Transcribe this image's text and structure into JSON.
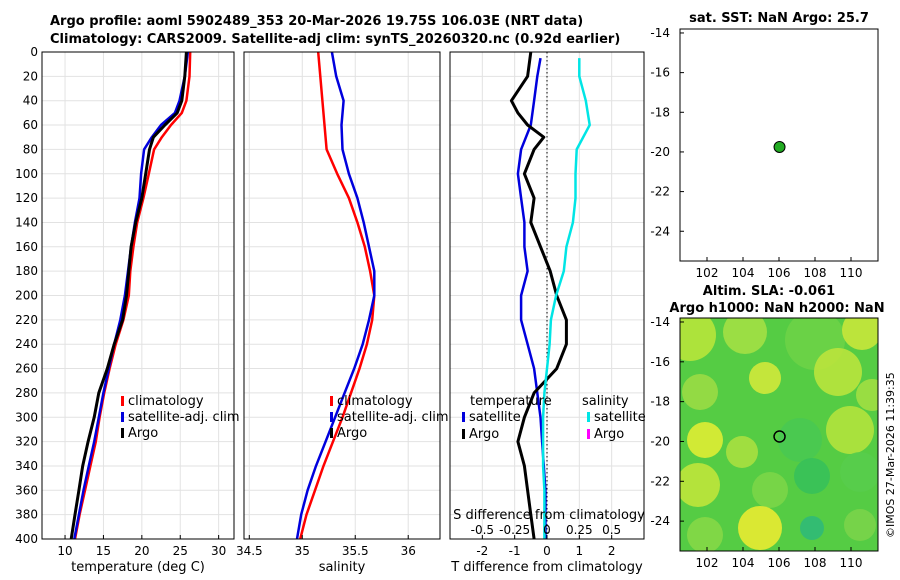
{
  "header": {
    "line1": "Argo profile: aoml 5902489_353 20-Mar-2026 19.75S 106.03E (NRT data)",
    "line2": "Climatology: CARS2009. Satellite-adj clim: synTS_20260320.nc (0.92d earlier)"
  },
  "colors": {
    "climatology": "#ff0000",
    "satellite_adj_clim": "#0000dd",
    "argo": "#000000",
    "salinity_satellite": "#00e5e5",
    "salinity_argo": "#ff00ff",
    "argo_point": "#22aa22"
  },
  "depth_ticks": [
    0,
    20,
    40,
    60,
    80,
    100,
    120,
    140,
    160,
    180,
    200,
    220,
    240,
    260,
    280,
    300,
    320,
    340,
    360,
    380,
    400
  ],
  "chart_data": [
    {
      "type": "line",
      "name": "temperature-profile",
      "xlabel": "temperature (deg C)",
      "ylabel": "depth",
      "xlim": [
        7,
        32
      ],
      "ylim": [
        0,
        400
      ],
      "x_ticks": [
        10,
        15,
        20,
        25,
        30
      ],
      "legend": [
        "climatology",
        "satellite-adj. clim",
        "Argo"
      ],
      "series": [
        {
          "name": "climatology",
          "depth": [
            0,
            20,
            40,
            50,
            60,
            70,
            80,
            100,
            120,
            140,
            160,
            180,
            200,
            220,
            240,
            260,
            280,
            300,
            320,
            340,
            360,
            380,
            400
          ],
          "values": [
            26.3,
            26.2,
            25.8,
            25.2,
            23.8,
            22.6,
            21.6,
            20.9,
            20.2,
            19.4,
            18.9,
            18.5,
            18.3,
            17.6,
            16.6,
            15.8,
            15.1,
            14.5,
            14.0,
            13.3,
            12.6,
            11.9,
            11.3
          ]
        },
        {
          "name": "satellite-adj. clim",
          "depth": [
            0,
            20,
            40,
            50,
            60,
            70,
            80,
            100,
            120,
            140,
            160,
            180,
            200,
            220,
            240,
            260,
            280,
            300,
            320,
            340,
            360,
            380,
            400
          ],
          "values": [
            26.0,
            25.6,
            24.9,
            24.3,
            22.5,
            21.3,
            20.3,
            19.9,
            19.7,
            19.1,
            18.6,
            18.2,
            17.8,
            17.2,
            16.4,
            15.7,
            15.0,
            14.4,
            13.8,
            13.1,
            12.4,
            11.8,
            11.2
          ]
        },
        {
          "name": "Argo",
          "depth": [
            0,
            20,
            40,
            50,
            60,
            70,
            80,
            100,
            120,
            140,
            160,
            180,
            200,
            220,
            240,
            260,
            280,
            300,
            320,
            340,
            360,
            380,
            400
          ],
          "values": [
            25.8,
            25.6,
            25.2,
            24.6,
            23.0,
            21.5,
            21.0,
            20.5,
            20.0,
            19.2,
            18.6,
            18.3,
            18.0,
            17.5,
            16.4,
            15.5,
            14.4,
            13.8,
            13.0,
            12.3,
            11.8,
            11.3,
            10.8
          ]
        }
      ]
    },
    {
      "type": "line",
      "name": "salinity-profile",
      "xlabel": "salinity",
      "ylabel": "depth",
      "xlim": [
        34.45,
        36.3
      ],
      "ylim": [
        0,
        400
      ],
      "x_ticks": [
        34.5,
        35,
        35.5,
        36
      ],
      "legend": [
        "climatology",
        "satellite-adj. clim",
        "Argo"
      ],
      "series": [
        {
          "name": "climatology",
          "depth": [
            0,
            20,
            40,
            60,
            80,
            100,
            120,
            140,
            160,
            180,
            200,
            220,
            240,
            260,
            280,
            300,
            320,
            340,
            360,
            380,
            400
          ],
          "values": [
            35.15,
            35.17,
            35.19,
            35.21,
            35.23,
            35.33,
            35.44,
            35.52,
            35.59,
            35.64,
            35.68,
            35.66,
            35.61,
            35.54,
            35.46,
            35.38,
            35.29,
            35.2,
            35.12,
            35.04,
            34.98
          ]
        },
        {
          "name": "satellite-adj. clim",
          "depth": [
            0,
            20,
            40,
            60,
            80,
            100,
            120,
            140,
            160,
            180,
            200,
            220,
            240,
            260,
            280,
            300,
            320,
            340,
            360,
            380,
            400
          ],
          "values": [
            35.28,
            35.32,
            35.39,
            35.37,
            35.38,
            35.44,
            35.52,
            35.58,
            35.63,
            35.68,
            35.68,
            35.63,
            35.57,
            35.49,
            35.4,
            35.31,
            35.22,
            35.13,
            35.05,
            34.99,
            34.95
          ]
        }
      ]
    },
    {
      "type": "line",
      "name": "difference-profile",
      "xlabel": "T difference from climatology",
      "top_xlabel": "S difference from climatology",
      "ylabel": "depth",
      "xlim": [
        -3,
        3
      ],
      "ylim": [
        0,
        400
      ],
      "x_ticks": [
        -2,
        -1,
        0,
        1,
        2
      ],
      "s_ticks": [
        -0.5,
        -0.25,
        0,
        0.25,
        0.5
      ],
      "s_tick_labels": [
        "-0.5",
        "-0.25",
        "0",
        "0.25",
        "0.5"
      ],
      "legend_left_title": "temperature",
      "legend_right_title": "salinity",
      "legend_left": [
        "satellite",
        "Argo"
      ],
      "legend_right": [
        "satellite",
        "Argo"
      ],
      "series": [
        {
          "name": "temperature satellite",
          "depth": [
            5,
            20,
            40,
            60,
            80,
            100,
            120,
            140,
            160,
            180,
            200,
            220,
            240,
            260,
            280,
            300,
            320,
            340,
            360,
            380,
            400
          ],
          "values": [
            -0.2,
            -0.3,
            -0.4,
            -0.5,
            -0.8,
            -0.9,
            -0.8,
            -0.7,
            -0.7,
            -0.6,
            -0.8,
            -0.8,
            -0.6,
            -0.4,
            -0.3,
            -0.2,
            -0.15,
            -0.1,
            -0.05,
            -0.05,
            -0.05
          ]
        },
        {
          "name": "temperature Argo",
          "depth": [
            0,
            20,
            40,
            50,
            60,
            70,
            80,
            100,
            120,
            140,
            160,
            180,
            200,
            220,
            240,
            260,
            280,
            300,
            320,
            340,
            360,
            380,
            400
          ],
          "values": [
            -0.5,
            -0.6,
            -1.1,
            -0.9,
            -0.6,
            -0.1,
            -0.4,
            -0.7,
            -0.4,
            -0.5,
            -0.2,
            0.1,
            0.3,
            0.6,
            0.6,
            0.3,
            -0.4,
            -0.7,
            -0.9,
            -0.7,
            -0.6,
            -0.5,
            -0.4
          ]
        },
        {
          "name": "salinity satellite",
          "depth": [
            5,
            20,
            40,
            60,
            80,
            100,
            120,
            140,
            160,
            180,
            200,
            220,
            240,
            260,
            280,
            300,
            320,
            340,
            360,
            380,
            400
          ],
          "values": [
            0.25,
            0.25,
            0.3,
            0.33,
            0.23,
            0.22,
            0.22,
            0.2,
            0.15,
            0.13,
            0.07,
            0.03,
            0.02,
            0.0,
            -0.02,
            -0.03,
            -0.03,
            -0.03,
            -0.02,
            -0.02,
            -0.02
          ]
        }
      ]
    },
    {
      "type": "scatter",
      "name": "sst-map",
      "title": "sat. SST: NaN Argo: 25.7",
      "xlim": [
        100.5,
        111.5
      ],
      "ylim": [
        -25.5,
        -13.8
      ],
      "x_ticks": [
        102,
        104,
        106,
        108,
        110
      ],
      "y_ticks": [
        -14,
        -16,
        -18,
        -20,
        -22,
        -24
      ],
      "points": [
        {
          "lon": 106.03,
          "lat": -19.75
        }
      ]
    },
    {
      "type": "heatmap",
      "name": "altimetry-map",
      "title_line1": "Altim. SLA: -0.061",
      "title_line2": "Argo h1000: NaN h2000: NaN",
      "xlim": [
        100.5,
        111.5
      ],
      "ylim": [
        -25.5,
        -13.8
      ],
      "x_ticks": [
        102,
        104,
        106,
        108,
        110
      ],
      "y_ticks": [
        -14,
        -16,
        -18,
        -20,
        -22,
        -24
      ],
      "points": [
        {
          "lon": 106.03,
          "lat": -19.75
        }
      ]
    }
  ],
  "timestamp": "©IMOS 27-Mar-2026 11:39:35"
}
